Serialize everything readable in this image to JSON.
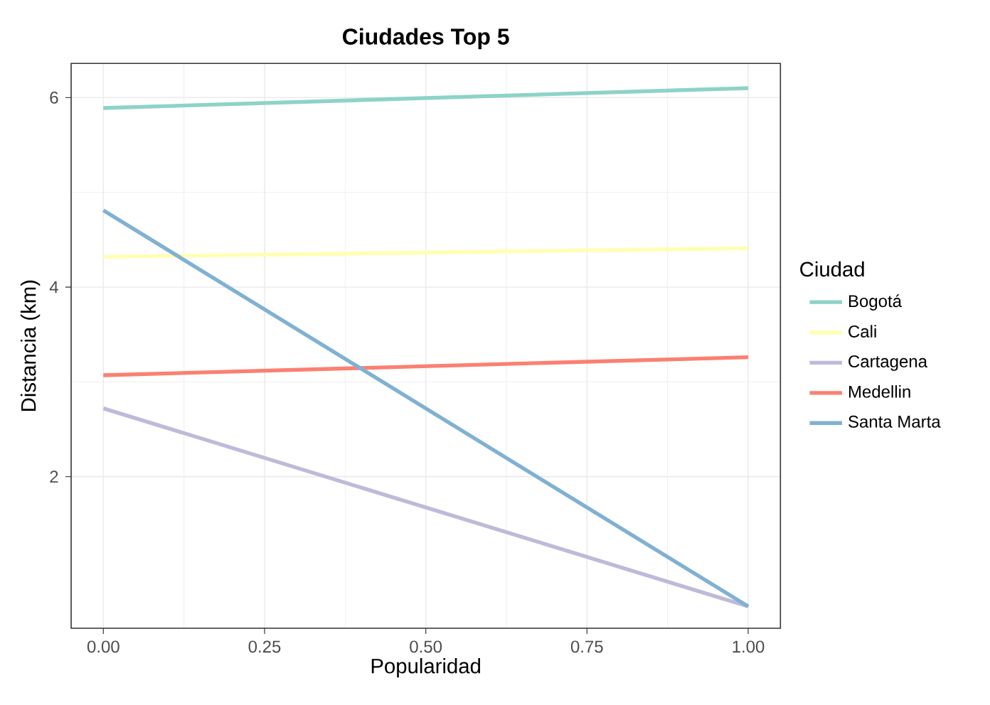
{
  "chart_data": {
    "type": "line",
    "title": "Ciudades Top 5",
    "xlabel": "Popularidad",
    "ylabel": "Distancia (km)",
    "legend_title": "Ciudad",
    "x": [
      0,
      1
    ],
    "xlim": [
      -0.05,
      1.05
    ],
    "xticks": [
      {
        "value": 0,
        "label": "0.00"
      },
      {
        "value": 0.25,
        "label": "0.25"
      },
      {
        "value": 0.5,
        "label": "0.50"
      },
      {
        "value": 0.75,
        "label": "0.75"
      },
      {
        "value": 1,
        "label": "1.00"
      }
    ],
    "ylim": [
      0.4,
      6.36
    ],
    "yticks": [
      2,
      4,
      6
    ],
    "grid": true,
    "legend": "right",
    "line_style": "solid",
    "series": [
      {
        "name": "Bogotá",
        "color": "#8dd3c7",
        "values": [
          5.89,
          6.1
        ]
      },
      {
        "name": "Cali",
        "color": "#ffffb3",
        "values": [
          4.32,
          4.41
        ]
      },
      {
        "name": "Cartagena",
        "color": "#bebada",
        "values": [
          2.72,
          0.63
        ]
      },
      {
        "name": "Medellin",
        "color": "#fb8072",
        "values": [
          3.07,
          3.26
        ]
      },
      {
        "name": "Santa Marta",
        "color": "#80b1d3",
        "values": [
          4.81,
          0.63
        ]
      }
    ]
  }
}
